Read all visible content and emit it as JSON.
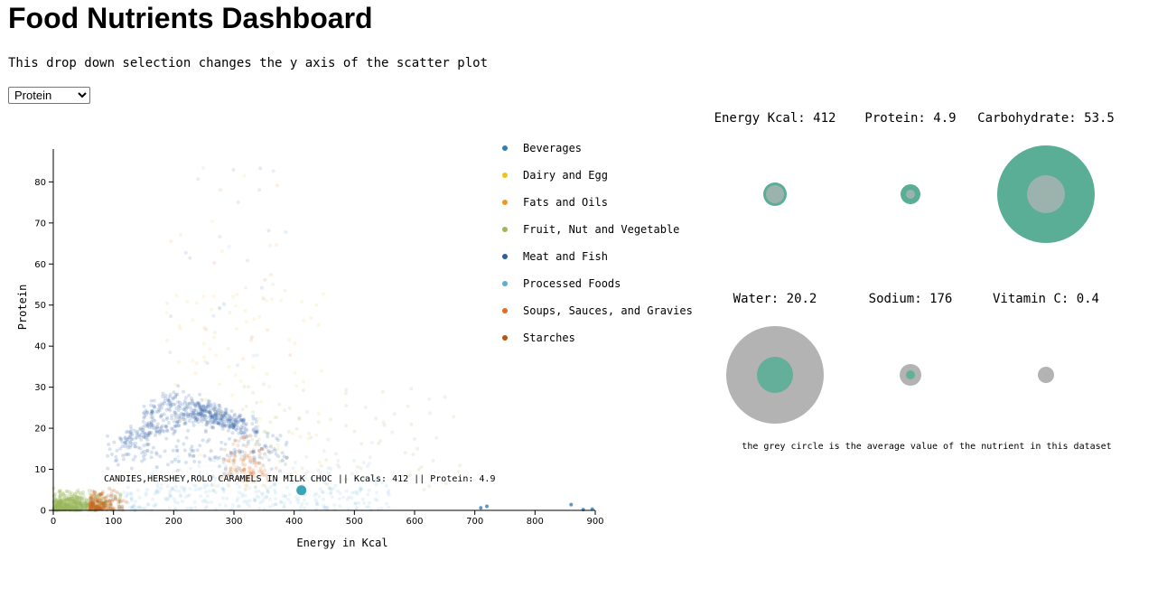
{
  "page": {
    "title": "Food Nutrients Dashboard",
    "description": "This drop down selection changes the y axis of the scatter plot",
    "dropdown": {
      "selected": "Protein",
      "options": [
        "Protein"
      ]
    }
  },
  "chart_data": [
    {
      "type": "scatter",
      "xlabel": "Energy in Kcal",
      "ylabel": "Protein",
      "xlim": [
        0,
        900
      ],
      "ylim": [
        0,
        88
      ],
      "x_ticks": [
        "0",
        "100",
        "200",
        "300",
        "400",
        "500",
        "600",
        "700",
        "800",
        "900"
      ],
      "y_ticks": [
        "0",
        "10",
        "20",
        "30",
        "40",
        "50",
        "60",
        "70",
        "80"
      ],
      "legend": [
        {
          "name": "Beverages",
          "color": "#2f7fbf"
        },
        {
          "name": "Dairy and Egg",
          "color": "#f2c21c"
        },
        {
          "name": "Fats and Oils",
          "color": "#f0961e"
        },
        {
          "name": "Fruit, Nut and Vegetable",
          "color": "#9cb85a"
        },
        {
          "name": "Meat and Fish",
          "color": "#2d5ea8"
        },
        {
          "name": "Processed Foods",
          "color": "#5aaed4"
        },
        {
          "name": "Soups, Sauces, and Gravies",
          "color": "#e56a1e"
        },
        {
          "name": "Starches",
          "color": "#b5530f"
        }
      ],
      "highlight": {
        "x": 412,
        "y": 4.9,
        "color": "#3aa3b8"
      },
      "hover_label": "CANDIES,HERSHEY,ROLO CARAMELS IN MILK CHOC || Kcals: 412 || Protein: 4.9"
    },
    {
      "type": "bubble-comparison",
      "note": "the grey circle is the average value of the nutrient in this dataset",
      "food_color": "#5aae96",
      "avg_color": "#b3b3b3",
      "items": [
        {
          "label": "Energy Kcal: 412",
          "value": 412,
          "avg": 226
        },
        {
          "label": "Protein: 4.9",
          "value": 4.9,
          "avg": 11.3
        },
        {
          "label": "Carbohydrate: 53.5",
          "value": 53.5,
          "avg": 21.9
        },
        {
          "label": "Water: 20.2",
          "value": 20.2,
          "avg": 54.1
        },
        {
          "label": "Sodium: 176",
          "value": 176,
          "avg": 322
        },
        {
          "label": "Vitamin C: 0.4",
          "value": 0.4,
          "avg": 7.9
        }
      ]
    }
  ]
}
